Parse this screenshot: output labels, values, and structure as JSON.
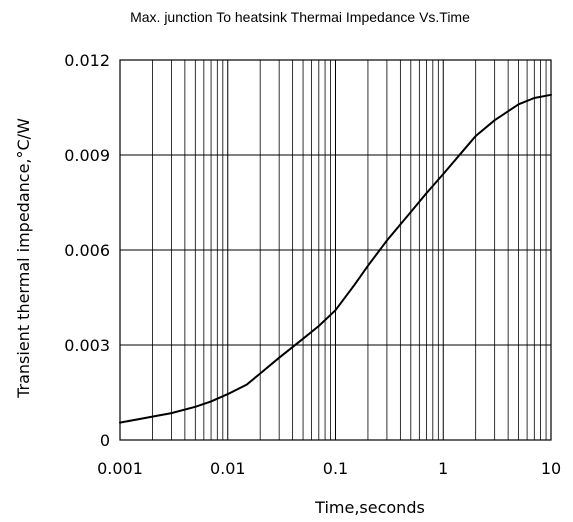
{
  "chart_data": {
    "type": "line",
    "title": "Max. junction To heatsink Thermai Impedance Vs.Time",
    "xlabel": "Time,seconds",
    "ylabel": "Transient thermal impedance,°C/W",
    "x_scale": "log",
    "xlim": [
      0.001,
      10
    ],
    "ylim": [
      0,
      0.012
    ],
    "grid": true,
    "x_ticks": [
      {
        "value": 0.001,
        "label": "0.001"
      },
      {
        "value": 0.01,
        "label": "0.01"
      },
      {
        "value": 0.1,
        "label": "0.1"
      },
      {
        "value": 1,
        "label": "1"
      },
      {
        "value": 10,
        "label": "10"
      }
    ],
    "y_ticks": [
      {
        "value": 0,
        "label": "0"
      },
      {
        "value": 0.003,
        "label": "0.003"
      },
      {
        "value": 0.006,
        "label": "0.006"
      },
      {
        "value": 0.009,
        "label": "0.009"
      },
      {
        "value": 0.012,
        "label": "0.012"
      }
    ],
    "series": [
      {
        "line_color": "#000000",
        "x": [
          0.001,
          0.0015,
          0.002,
          0.003,
          0.005,
          0.007,
          0.01,
          0.015,
          0.02,
          0.03,
          0.05,
          0.07,
          0.1,
          0.15,
          0.2,
          0.3,
          0.5,
          0.7,
          1,
          1.5,
          2,
          3,
          5,
          7,
          10
        ],
        "y": [
          0.00055,
          0.00066,
          0.00074,
          0.00085,
          0.00105,
          0.00122,
          0.00145,
          0.00175,
          0.0021,
          0.0026,
          0.0032,
          0.0036,
          0.0041,
          0.0049,
          0.0055,
          0.0063,
          0.0072,
          0.0078,
          0.0084,
          0.0091,
          0.0096,
          0.0101,
          0.0106,
          0.0108,
          0.0109
        ]
      }
    ]
  }
}
